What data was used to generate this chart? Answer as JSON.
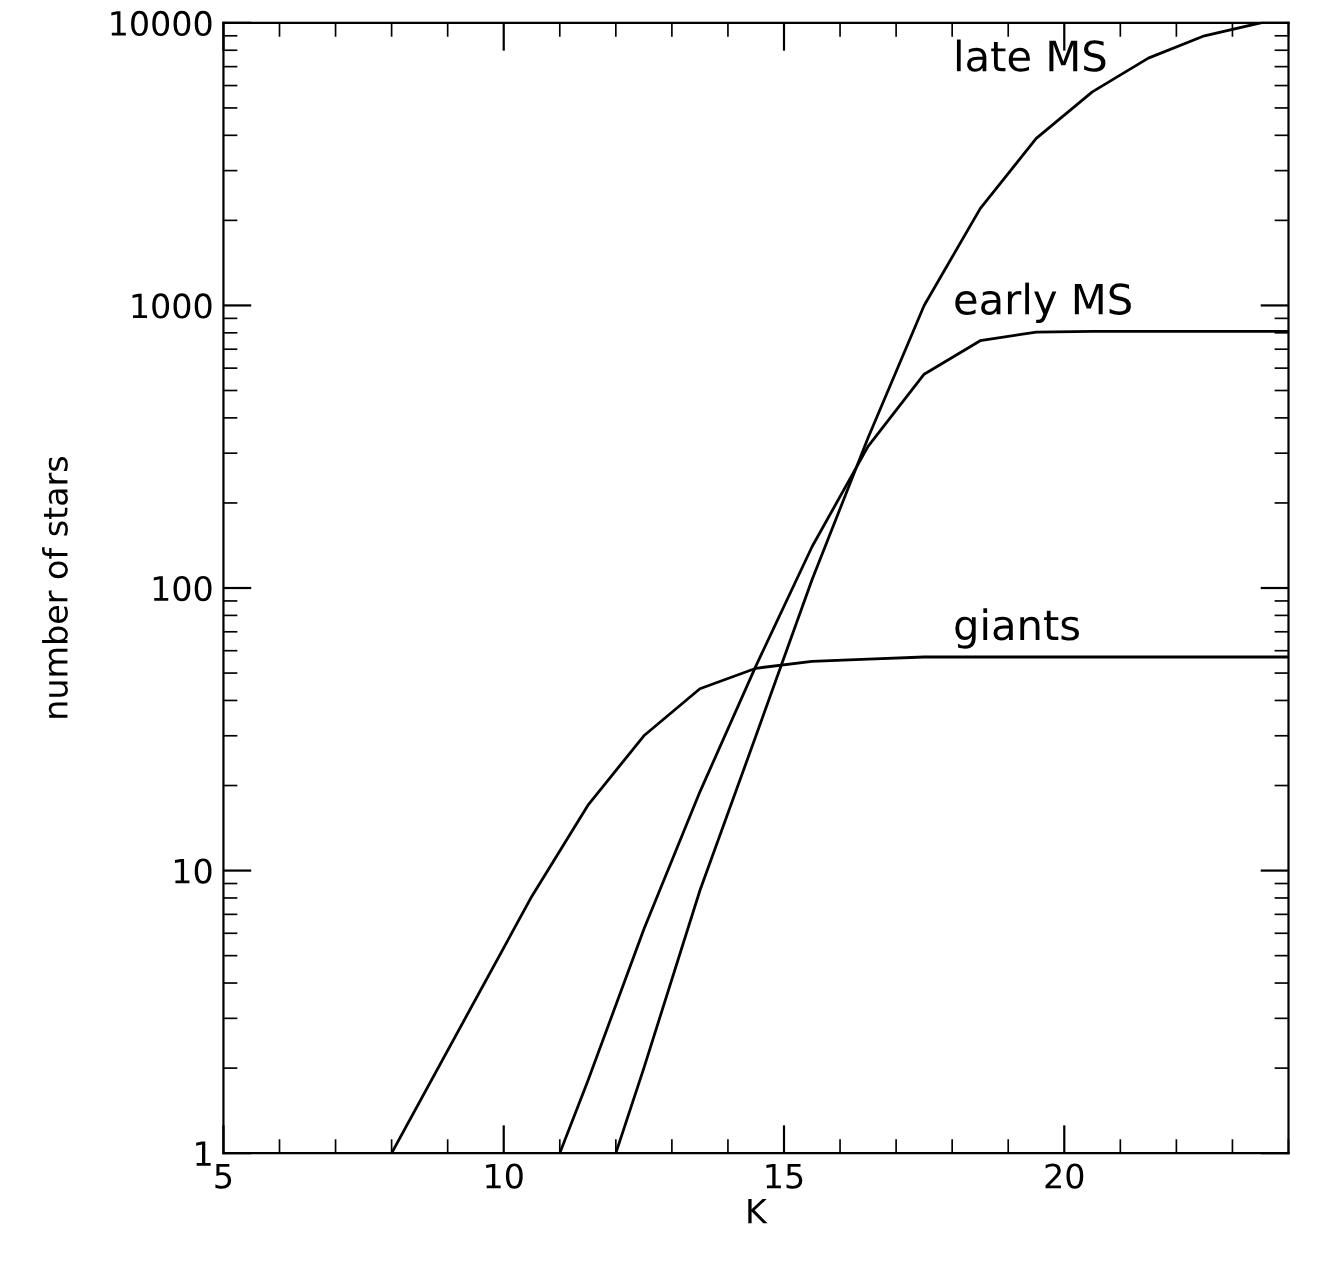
{
  "chart_data": {
    "type": "line",
    "xlabel": "K",
    "ylabel": "number of stars",
    "log": "y",
    "xlim": [
      5,
      24
    ],
    "xticks": [
      5,
      10,
      15,
      20
    ],
    "ylim": [
      1,
      10000
    ],
    "yticks": [
      1,
      10,
      100,
      1000,
      10000
    ],
    "grid": false,
    "series": [
      {
        "name": "giants",
        "color": "#000000",
        "x": [
          8.0,
          10.5,
          11.5,
          12.5,
          13.5,
          14.5,
          15.5,
          16.5,
          17.5,
          18.5,
          19.5,
          20.5,
          21.5,
          22.5,
          23.5,
          24
        ],
        "values": [
          1,
          8.1,
          17,
          30,
          44,
          52,
          55,
          56,
          57,
          57,
          57,
          57,
          57,
          57,
          57,
          57
        ]
      },
      {
        "name": "early MS",
        "color": "#000000",
        "x": [
          11.0,
          11.5,
          12.5,
          13.5,
          14.5,
          15.5,
          16.5,
          17.5,
          18.5,
          19.5,
          20.5,
          21.5,
          22.5,
          23.5,
          24
        ],
        "values": [
          1,
          1.8,
          6.2,
          19,
          53,
          140,
          317,
          571,
          750,
          805,
          810,
          810,
          810,
          810,
          810
        ]
      },
      {
        "name": "late MS",
        "color": "#000000",
        "x": [
          12.0,
          12.5,
          13.5,
          14.5,
          15.5,
          16.5,
          17.5,
          18.5,
          19.5,
          20.5,
          21.5,
          22.5,
          23.5
        ],
        "values": [
          1,
          2.0,
          8.5,
          30,
          107,
          340,
          1000,
          2200,
          3900,
          5700,
          7500,
          9000,
          10000
        ]
      }
    ]
  }
}
